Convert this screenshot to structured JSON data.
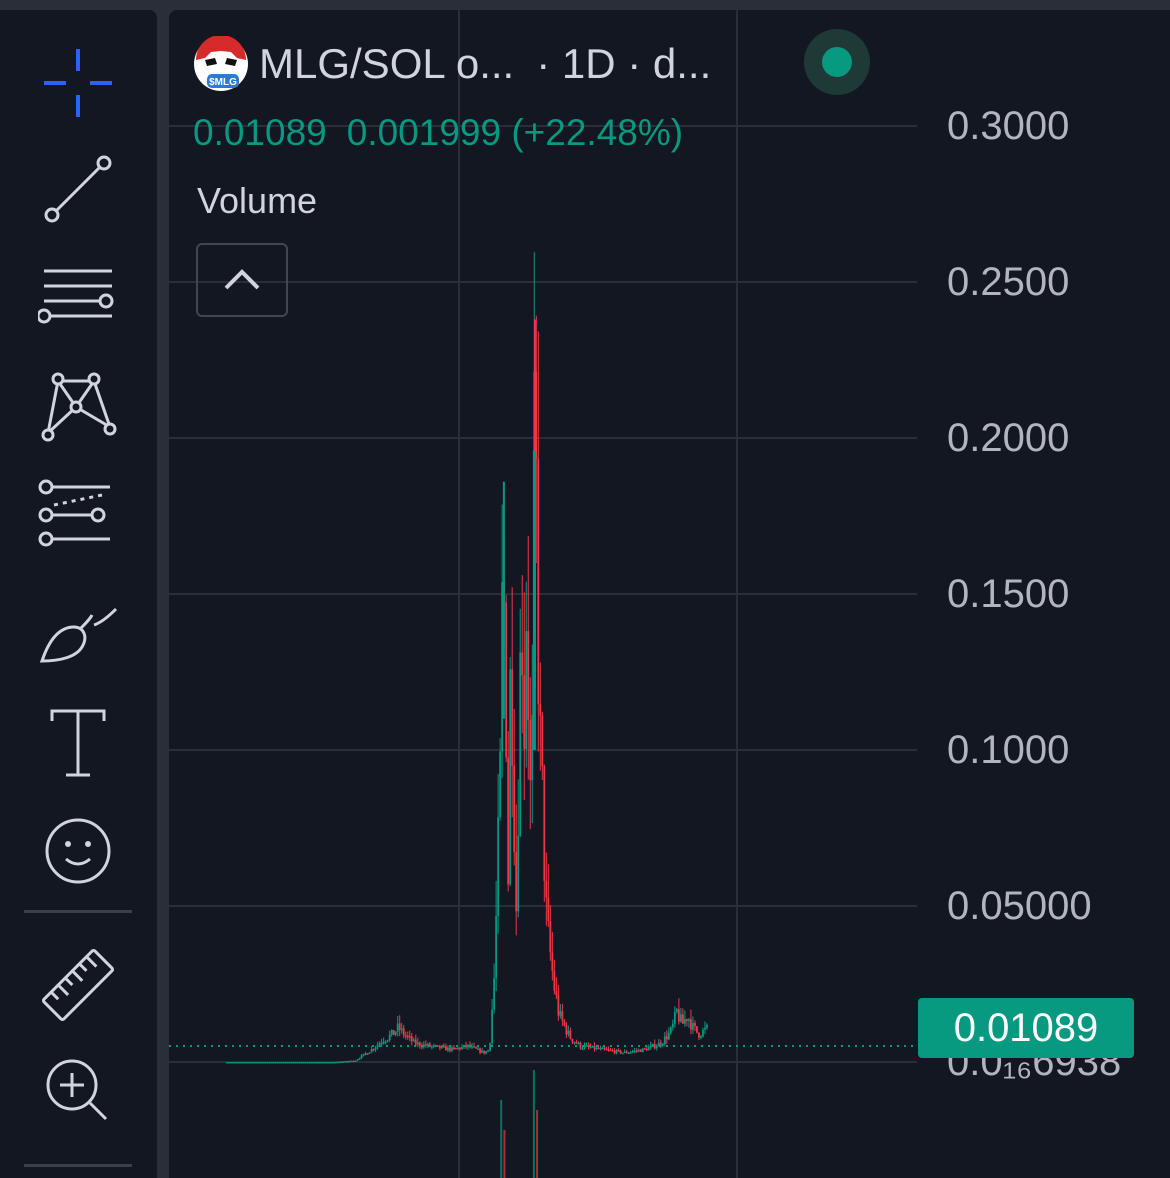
{
  "toolbar": {
    "tools": [
      {
        "name": "crosshair-icon"
      },
      {
        "name": "trend-line-icon"
      },
      {
        "name": "fib-retracement-icon"
      },
      {
        "name": "pattern-icon"
      },
      {
        "name": "prediction-icon"
      },
      {
        "name": "brush-icon"
      },
      {
        "name": "text-icon"
      },
      {
        "name": "emoji-icon"
      },
      {
        "name": "ruler-icon"
      },
      {
        "name": "zoom-in-icon"
      }
    ]
  },
  "legend": {
    "symbol": "MLG/SOL o...",
    "interval": "· 1D · d...",
    "price": "0.01089",
    "change": "0.001999 (+22.48%)",
    "logo_text": "$MLG",
    "status_color": "#089981"
  },
  "volume_label": "Volume",
  "price_axis": {
    "labels": [
      "0.3000",
      "0.2500",
      "0.2000",
      "0.1500",
      "0.1000",
      "0.05000",
      "0.0₁₆6938"
    ],
    "current_price_label": "0.01089"
  },
  "colors": {
    "background": "#131722",
    "up": "#089981",
    "down": "#f23645",
    "text": "#d1d4dc"
  },
  "chart_data": {
    "type": "candlestick",
    "title": "",
    "xlabel": "",
    "ylabel": "",
    "ylim": [
      0,
      0.3
    ],
    "grid": true,
    "current_price": 0.01089,
    "path_points": [
      [
        0.0,
        0.0
      ],
      [
        0.05,
        0.0
      ],
      [
        0.1,
        0.0
      ],
      [
        0.15,
        0.0
      ],
      [
        0.2,
        0.0
      ],
      [
        0.24,
        0.0005
      ],
      [
        0.27,
        0.004
      ],
      [
        0.29,
        0.007
      ],
      [
        0.31,
        0.009
      ],
      [
        0.32,
        0.011
      ],
      [
        0.33,
        0.009
      ],
      [
        0.35,
        0.006
      ],
      [
        0.38,
        0.005
      ],
      [
        0.42,
        0.004
      ],
      [
        0.45,
        0.005
      ],
      [
        0.48,
        0.003
      ],
      [
        0.49,
        0.004
      ],
      [
        0.5,
        0.03
      ],
      [
        0.51,
        0.09
      ],
      [
        0.515,
        0.16
      ],
      [
        0.52,
        0.13
      ],
      [
        0.525,
        0.06
      ],
      [
        0.53,
        0.14
      ],
      [
        0.535,
        0.09
      ],
      [
        0.54,
        0.05
      ],
      [
        0.545,
        0.1
      ],
      [
        0.55,
        0.15
      ],
      [
        0.555,
        0.11
      ],
      [
        0.56,
        0.16
      ],
      [
        0.565,
        0.08
      ],
      [
        0.57,
        0.1
      ],
      [
        0.575,
        0.22
      ],
      [
        0.58,
        0.14
      ],
      [
        0.585,
        0.1
      ],
      [
        0.59,
        0.08
      ],
      [
        0.595,
        0.05
      ],
      [
        0.6,
        0.04
      ],
      [
        0.61,
        0.025
      ],
      [
        0.62,
        0.015
      ],
      [
        0.64,
        0.008
      ],
      [
        0.66,
        0.005
      ],
      [
        0.7,
        0.004
      ],
      [
        0.74,
        0.003
      ],
      [
        0.78,
        0.004
      ],
      [
        0.81,
        0.006
      ],
      [
        0.83,
        0.01
      ],
      [
        0.84,
        0.016
      ],
      [
        0.85,
        0.012
      ],
      [
        0.86,
        0.015
      ],
      [
        0.87,
        0.011
      ],
      [
        0.88,
        0.009
      ],
      [
        0.9,
        0.01089
      ]
    ]
  }
}
